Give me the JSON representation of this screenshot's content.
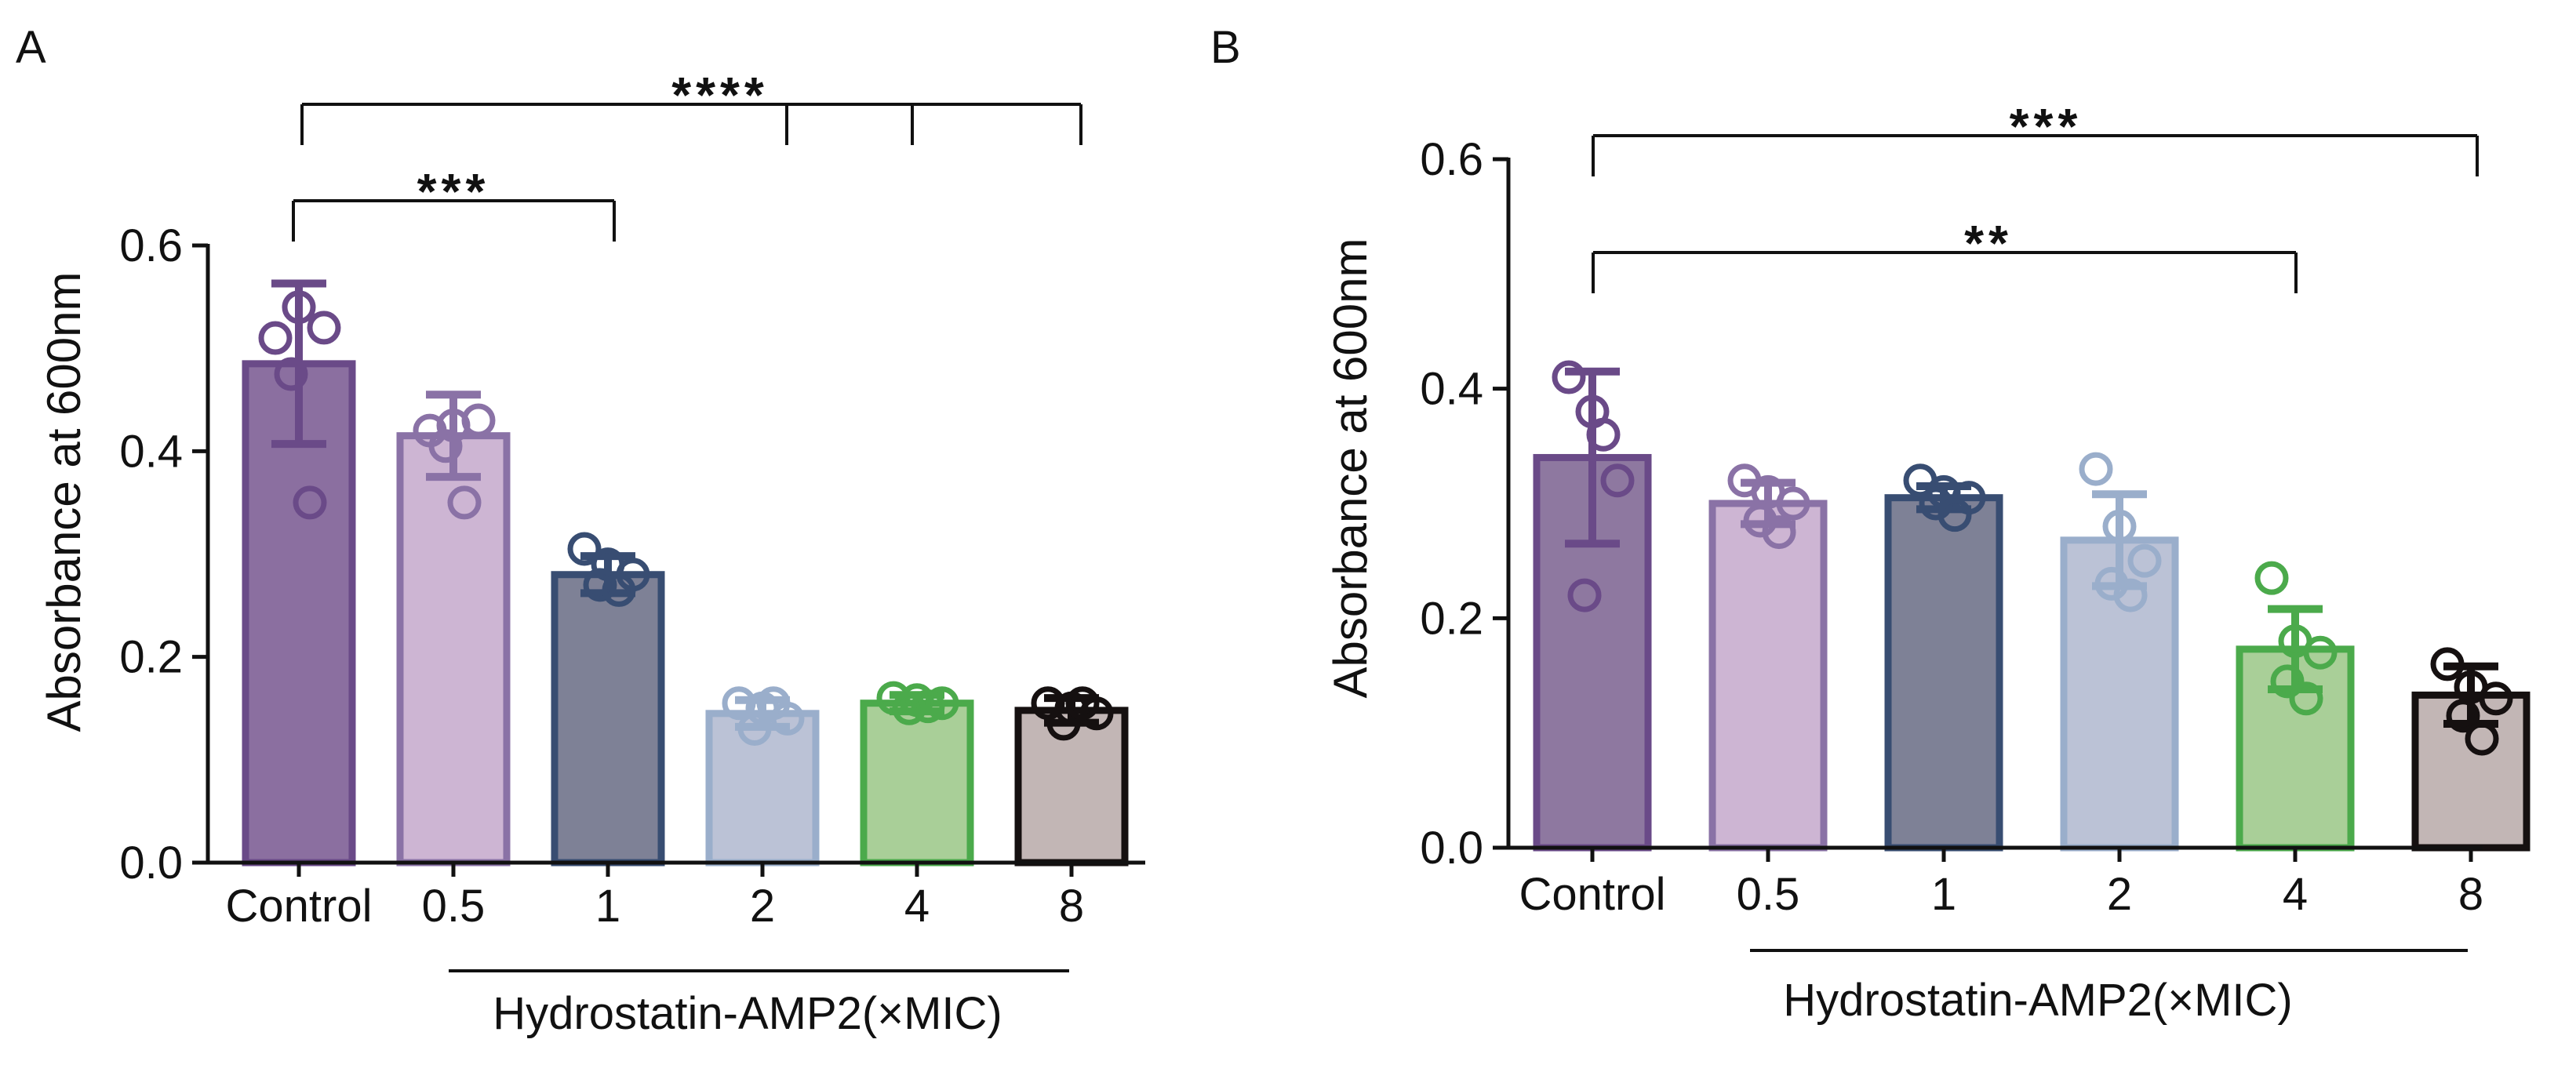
{
  "chart_data": [
    {
      "panel_label": "A",
      "type": "bar",
      "ylabel": "Absorbance at 600nm",
      "xlabel": "Hydrostatin-AMP2(×MIC)",
      "categories": [
        "Control",
        "0.5",
        "1",
        "2",
        "4",
        "8"
      ],
      "ylim": [
        0,
        0.6
      ],
      "yticks": [
        0.0,
        0.2,
        0.4,
        0.6
      ],
      "ytick_labels": [
        "0.0",
        "0.2",
        "0.4",
        "0.6"
      ],
      "bars": [
        {
          "category": "Control",
          "mean": 0.485,
          "sd": 0.078,
          "points": [
            0.51,
            0.54,
            0.52,
            0.475,
            0.35
          ],
          "fill": "#8B6FA0",
          "stroke": "#6A4A88"
        },
        {
          "category": "0.5",
          "mean": 0.415,
          "sd": 0.04,
          "points": [
            0.42,
            0.425,
            0.43,
            0.405,
            0.35
          ],
          "fill": "#CDB5D3",
          "stroke": "#8A72A6"
        },
        {
          "category": "1",
          "mean": 0.28,
          "sd": 0.018,
          "points": [
            0.305,
            0.29,
            0.28,
            0.27,
            0.265
          ],
          "fill": "#7E8196",
          "stroke": "#384D72"
        },
        {
          "category": "2",
          "mean": 0.145,
          "sd": 0.013,
          "points": [
            0.155,
            0.15,
            0.14,
            0.13,
            0.155
          ],
          "fill": "#BBC2D6",
          "stroke": "#9AAECB"
        },
        {
          "category": "4",
          "mean": 0.155,
          "sd": 0.008,
          "points": [
            0.16,
            0.158,
            0.155,
            0.15,
            0.152
          ],
          "fill": "#A9CF98",
          "stroke": "#4BAA4B"
        },
        {
          "category": "8",
          "mean": 0.148,
          "sd": 0.012,
          "points": [
            0.155,
            0.15,
            0.145,
            0.135,
            0.155
          ],
          "fill": "#C2B6B5",
          "stroke": "#151010"
        }
      ],
      "significance": [
        {
          "label": "***",
          "from": "Control",
          "to": "1"
        },
        {
          "label": "****",
          "from": "Control",
          "to": [
            "2",
            "4",
            "8"
          ]
        }
      ]
    },
    {
      "panel_label": "B",
      "type": "bar",
      "ylabel": "Absorbance at 600nm",
      "xlabel": "Hydrostatin-AMP2(×MIC)",
      "categories": [
        "Control",
        "0.5",
        "1",
        "2",
        "4",
        "8"
      ],
      "ylim": [
        0,
        0.6
      ],
      "yticks": [
        0.0,
        0.2,
        0.4,
        0.6
      ],
      "ytick_labels": [
        "0.0",
        "0.2",
        "0.4",
        "0.6"
      ],
      "bars": [
        {
          "category": "Control",
          "mean": 0.34,
          "sd": 0.075,
          "points": [
            0.41,
            0.38,
            0.32,
            0.22,
            0.36
          ],
          "fill": "#8E78A0",
          "stroke": "#6A4A88"
        },
        {
          "category": "0.5",
          "mean": 0.3,
          "sd": 0.018,
          "points": [
            0.32,
            0.31,
            0.3,
            0.285,
            0.275
          ],
          "fill": "#CDB5D3",
          "stroke": "#8A72A6"
        },
        {
          "category": "1",
          "mean": 0.305,
          "sd": 0.01,
          "points": [
            0.32,
            0.31,
            0.305,
            0.3,
            0.29
          ],
          "fill": "#7E8196",
          "stroke": "#384D72"
        },
        {
          "category": "2",
          "mean": 0.268,
          "sd": 0.04,
          "points": [
            0.33,
            0.28,
            0.25,
            0.23,
            0.22
          ],
          "fill": "#BBC2D6",
          "stroke": "#9AAECB"
        },
        {
          "category": "4",
          "mean": 0.173,
          "sd": 0.035,
          "points": [
            0.235,
            0.18,
            0.17,
            0.145,
            0.13
          ],
          "fill": "#A9CF98",
          "stroke": "#4BAA4B"
        },
        {
          "category": "8",
          "mean": 0.133,
          "sd": 0.025,
          "points": [
            0.16,
            0.14,
            0.13,
            0.115,
            0.095
          ],
          "fill": "#C2B6B5",
          "stroke": "#151010"
        }
      ],
      "significance": [
        {
          "label": "***",
          "from": "Control",
          "to": "8"
        },
        {
          "label": "**",
          "from": "Control",
          "to": "4"
        }
      ]
    }
  ]
}
